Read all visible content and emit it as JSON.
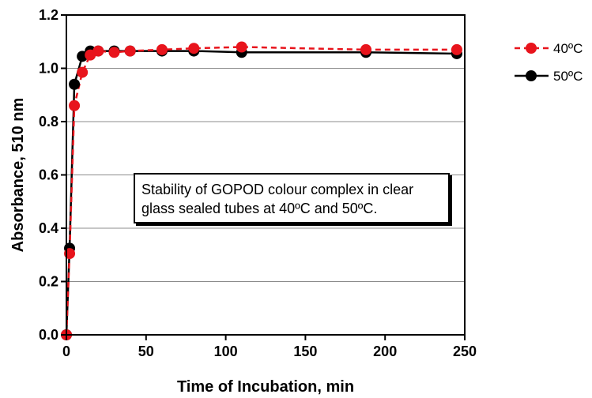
{
  "chart_data": {
    "type": "line",
    "xlabel": "Time of Incubation,  min",
    "ylabel": "Absorbance, 510 nm",
    "xlim": [
      0,
      250
    ],
    "ylim": [
      0,
      1.2
    ],
    "xticks": [
      "0",
      "50",
      "100",
      "150",
      "200",
      "250"
    ],
    "yticks": [
      "0.0",
      "0.2",
      "0.4",
      "0.6",
      "0.8",
      "1.0",
      "1.2"
    ],
    "grid": "horizontal",
    "legend_position": "right",
    "annotation_lines": [
      "Stability of GOPOD colour complex in clear",
      "glass sealed tubes at 40ºC and 50ºC."
    ],
    "series": [
      {
        "name": "40ºC",
        "color": "#e8141c",
        "line_style": "dashed",
        "x": [
          0,
          2,
          5,
          10,
          15,
          20,
          30,
          40,
          60,
          80,
          110,
          188,
          245
        ],
        "y": [
          0.0,
          0.305,
          0.86,
          0.985,
          1.05,
          1.065,
          1.06,
          1.065,
          1.07,
          1.075,
          1.08,
          1.07,
          1.07
        ]
      },
      {
        "name": "50ºC",
        "color": "#000000",
        "line_style": "solid",
        "x": [
          0,
          2,
          5,
          10,
          15,
          20,
          30,
          40,
          60,
          80,
          110,
          188,
          245
        ],
        "y": [
          0.0,
          0.325,
          0.94,
          1.045,
          1.065,
          1.065,
          1.065,
          1.065,
          1.065,
          1.065,
          1.06,
          1.06,
          1.055
        ]
      }
    ]
  }
}
